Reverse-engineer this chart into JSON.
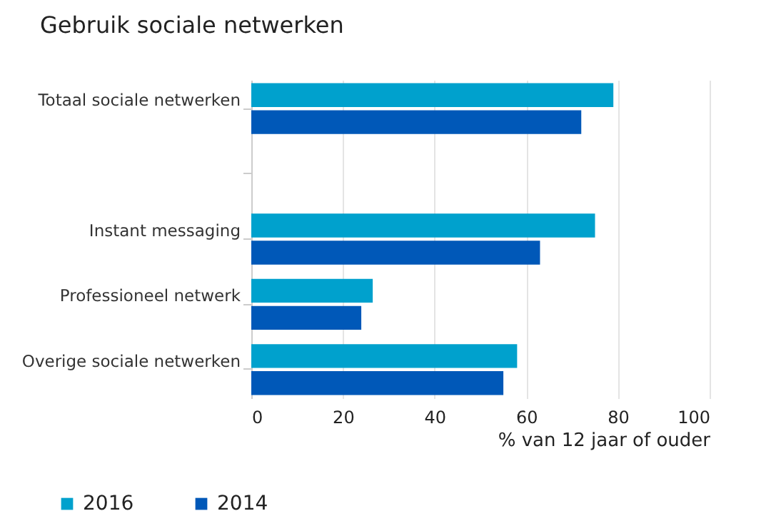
{
  "chart_data": {
    "type": "bar",
    "orientation": "horizontal",
    "title": "Gebruik sociale netwerken",
    "xlabel": "% van 12 jaar of ouder",
    "categories": [
      "Totaal sociale netwerken",
      null,
      "Instant messaging",
      "Professioneel netwerk",
      "Overige sociale netwerken"
    ],
    "series": [
      {
        "name": "2016",
        "color": "#00a1cd",
        "values": [
          79,
          null,
          75,
          26.5,
          58
        ]
      },
      {
        "name": "2014",
        "color": "#0058b8",
        "values": [
          72,
          null,
          63,
          24,
          55
        ]
      }
    ],
    "xlim": [
      0,
      100
    ],
    "xticks": [
      0,
      20,
      40,
      60,
      80,
      100
    ],
    "grid": "x",
    "legend": "bottom left"
  }
}
